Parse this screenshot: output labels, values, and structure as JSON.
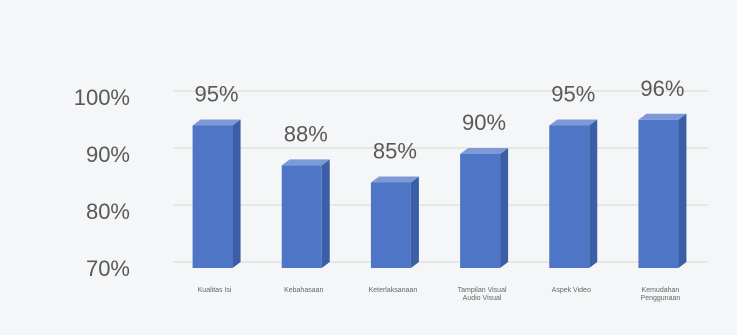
{
  "chart_data": {
    "type": "bar",
    "categories": [
      "Kualitas Isi",
      "Kebahasaan",
      "Keterlaksanaan",
      "Tampilan Visual Audio Visual",
      "Aspek Video",
      "Kemudahan Penggunaan"
    ],
    "category_lines": [
      [
        "Kualitas Isi"
      ],
      [
        "Kebahasaan"
      ],
      [
        "Keterlaksanaan"
      ],
      [
        "Tampilan Visual",
        "Audio Visual"
      ],
      [
        "Aspek Video"
      ],
      [
        "Kemudahan",
        "Penggunaan"
      ]
    ],
    "values": [
      95,
      88,
      85,
      90,
      95,
      96
    ],
    "data_labels": [
      "95%",
      "88%",
      "85%",
      "90%",
      "95%",
      "96%"
    ],
    "yticks": [
      70,
      80,
      90,
      100
    ],
    "ytick_labels": [
      "70%",
      "80%",
      "90%",
      "100%"
    ],
    "ylim": [
      70,
      100
    ],
    "grid": true,
    "bar_style": "3d-column",
    "colors": {
      "bar_front": "#4f76c6",
      "bar_side": "#3c5ea6",
      "bar_top": "#7d9ad6"
    }
  }
}
